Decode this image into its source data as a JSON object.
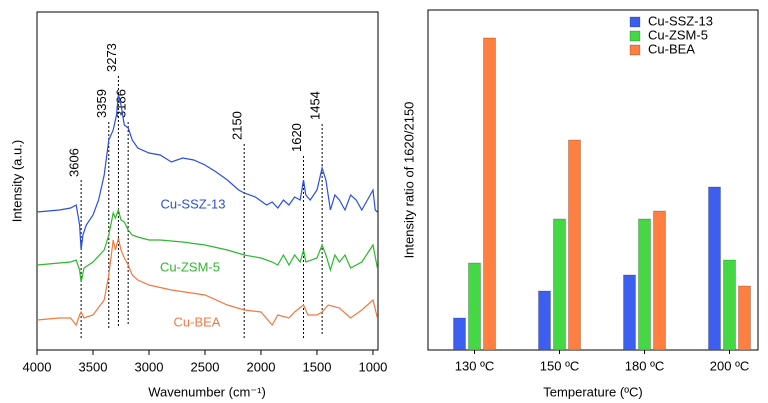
{
  "chart_data": [
    {
      "type": "line",
      "xlabel": "Wavenumber (cm⁻¹)",
      "ylabel": "Intensity (a.u.)",
      "xlim": [
        4000,
        955
      ],
      "xticks": [
        4000,
        3500,
        3000,
        2500,
        2000,
        1500,
        1000
      ],
      "ylim": [
        0,
        338
      ],
      "annotations": [
        3606,
        3359,
        3273,
        3186,
        2150,
        1620,
        1454
      ],
      "series": [
        {
          "name": "Cu-SSZ-13",
          "color": "#2a4fe0",
          "x": [
            4000,
            3800,
            3700,
            3650,
            3620,
            3606,
            3590,
            3560,
            3500,
            3450,
            3400,
            3359,
            3320,
            3290,
            3273,
            3250,
            3220,
            3186,
            3150,
            3100,
            3000,
            2900,
            2800,
            2700,
            2600,
            2500,
            2400,
            2300,
            2200,
            2150,
            2050,
            1950,
            1900,
            1850,
            1800,
            1750,
            1700,
            1650,
            1620,
            1600,
            1560,
            1500,
            1454,
            1420,
            1380,
            1340,
            1300,
            1250,
            1200,
            1150,
            1100,
            1050,
            1000,
            980,
            960
          ],
          "values": [
            138,
            140,
            142,
            145,
            125,
            100,
            115,
            125,
            135,
            150,
            175,
            210,
            220,
            235,
            255,
            245,
            225,
            222,
            210,
            202,
            197,
            195,
            188,
            192,
            190,
            185,
            178,
            170,
            160,
            157,
            153,
            145,
            148,
            142,
            150,
            145,
            153,
            150,
            170,
            155,
            150,
            160,
            182,
            170,
            140,
            155,
            150,
            140,
            155,
            150,
            140,
            150,
            160,
            140,
            138
          ]
        },
        {
          "name": "Cu-ZSM-5",
          "color": "#2db82d",
          "x": [
            4000,
            3800,
            3700,
            3650,
            3620,
            3606,
            3580,
            3500,
            3400,
            3359,
            3320,
            3300,
            3273,
            3250,
            3220,
            3186,
            3150,
            3100,
            3000,
            2900,
            2700,
            2500,
            2300,
            2150,
            2000,
            1900,
            1850,
            1800,
            1750,
            1700,
            1650,
            1620,
            1600,
            1500,
            1454,
            1420,
            1380,
            1340,
            1300,
            1250,
            1200,
            1100,
            1000,
            960
          ],
          "values": [
            85,
            87,
            88,
            90,
            80,
            68,
            82,
            88,
            100,
            115,
            137,
            132,
            140,
            130,
            128,
            120,
            115,
            113,
            110,
            110,
            108,
            105,
            100,
            95,
            92,
            88,
            85,
            95,
            85,
            95,
            88,
            100,
            88,
            92,
            105,
            95,
            80,
            95,
            88,
            95,
            82,
            88,
            105,
            82
          ]
        },
        {
          "name": "Cu-BEA",
          "color": "#f07a40",
          "x": [
            4000,
            3800,
            3700,
            3650,
            3620,
            3606,
            3580,
            3500,
            3400,
            3359,
            3320,
            3300,
            3273,
            3250,
            3220,
            3186,
            3150,
            3100,
            3000,
            2800,
            2500,
            2300,
            2150,
            2000,
            1900,
            1850,
            1750,
            1700,
            1620,
            1580,
            1500,
            1454,
            1400,
            1300,
            1200,
            1100,
            1000,
            960
          ],
          "values": [
            30,
            32,
            32,
            25,
            35,
            38,
            32,
            35,
            50,
            75,
            110,
            100,
            112,
            100,
            92,
            85,
            75,
            70,
            65,
            60,
            55,
            45,
            40,
            38,
            25,
            35,
            32,
            38,
            45,
            35,
            35,
            38,
            45,
            42,
            32,
            40,
            50,
            32
          ]
        }
      ]
    },
    {
      "type": "bar",
      "xlabel": "Temperature (ºC)",
      "ylabel": "Intensity ratio of 1620/2150",
      "categories": [
        "130 ºC",
        "150 ºC",
        "180 ºC",
        "200 ºC"
      ],
      "ylim": [
        0,
        3.4
      ],
      "legend": "upper right",
      "series": [
        {
          "name": "Cu-SSZ-13",
          "color": "#3d5ff0",
          "values": [
            0.32,
            0.59,
            0.75,
            1.63
          ]
        },
        {
          "name": "Cu-ZSM-5",
          "color": "#45d845",
          "values": [
            0.87,
            1.31,
            1.31,
            0.9
          ]
        },
        {
          "name": "Cu-BEA",
          "color": "#ff7f40",
          "values": [
            3.12,
            2.1,
            1.39,
            0.64
          ]
        }
      ]
    }
  ]
}
